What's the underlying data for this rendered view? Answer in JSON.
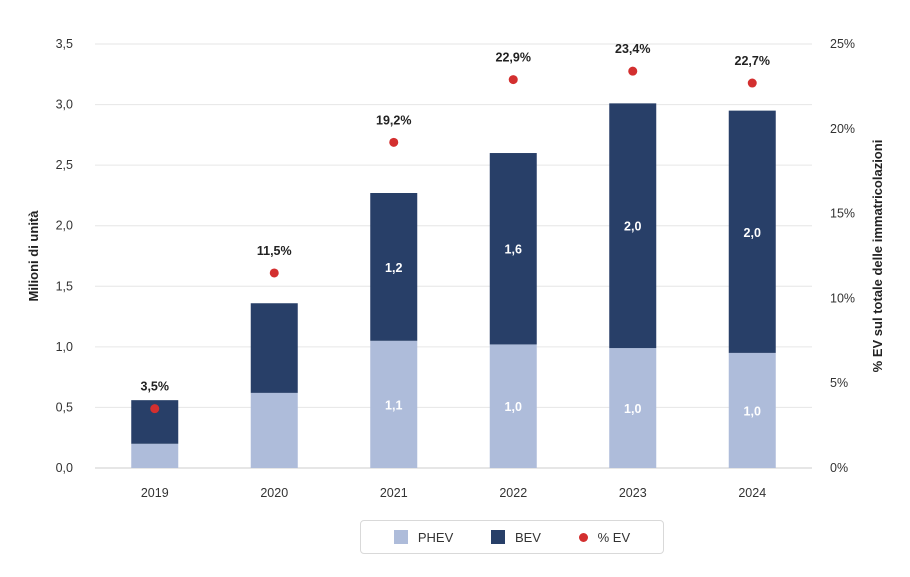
{
  "colors": {
    "phev": "#aebcda",
    "bev": "#283f68",
    "ev_pct": "#d32f2f",
    "grid": "#e6e6e6"
  },
  "chart_data": {
    "type": "bar",
    "stacked": true,
    "categories": [
      "2019",
      "2020",
      "2021",
      "2022",
      "2023",
      "2024"
    ],
    "series": [
      {
        "name": "PHEV",
        "values": [
          0.2,
          0.62,
          1.05,
          1.02,
          0.99,
          0.95
        ],
        "labels": [
          "",
          "",
          "1,1",
          "1,0",
          "1,0",
          "1,0"
        ]
      },
      {
        "name": "BEV",
        "values": [
          0.36,
          0.74,
          1.22,
          1.58,
          2.02,
          2.0
        ],
        "labels": [
          "",
          "",
          "1,2",
          "1,6",
          "2,0",
          "2,0"
        ]
      }
    ],
    "line_series": {
      "name": "% EV",
      "values": [
        3.5,
        11.5,
        19.2,
        22.9,
        23.4,
        22.7
      ],
      "labels": [
        "3,5%",
        "11,5%",
        "19,2%",
        "22,9%",
        "23,4%",
        "22,7%"
      ]
    },
    "ylabel": "Milioni di unità",
    "y2label": "% EV sul totale delle immatricolazioni",
    "ylim": [
      0,
      3.5
    ],
    "y2lim": [
      0,
      25
    ],
    "yticks": [
      "0,0",
      "0,5",
      "1,0",
      "1,5",
      "2,0",
      "2,5",
      "3,0",
      "3,5"
    ],
    "y2ticks": [
      "0%",
      "5%",
      "10%",
      "15%",
      "20%",
      "25%"
    ],
    "legend": [
      "PHEV",
      "BEV",
      "% EV"
    ],
    "grid": true
  }
}
